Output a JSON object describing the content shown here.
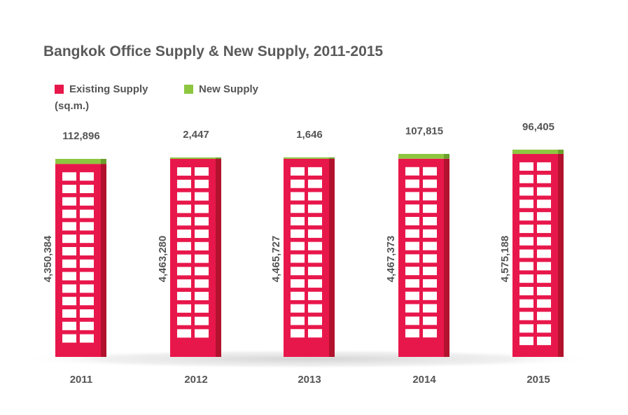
{
  "colors": {
    "existing": "#e8174b",
    "existing_side": "#b2122d",
    "new": "#8dc63f",
    "new_side": "#6a9f2c",
    "text": "#555555",
    "window": "#ffffff"
  },
  "chart_data": {
    "type": "bar",
    "stacked": true,
    "title": "Bangkok Office Supply & New Supply, 2011-2015",
    "unit": "(sq.m.)",
    "categories": [
      "2011",
      "2012",
      "2013",
      "2014",
      "2015"
    ],
    "series": [
      {
        "name": "Existing Supply",
        "values": [
          4350384,
          4463280,
          4465727,
          4467373,
          4575188
        ]
      },
      {
        "name": "New Supply",
        "values": [
          112896,
          2447,
          1646,
          107815,
          96405
        ]
      }
    ],
    "value_labels": {
      "existing": [
        "4,350,384",
        "4,463,280",
        "4,465,727",
        "4,467,373",
        "4,575,188"
      ],
      "new": [
        "112,896",
        "2,447",
        "1,646",
        "107,815",
        "96,405"
      ]
    },
    "legend_position": "top-left"
  }
}
